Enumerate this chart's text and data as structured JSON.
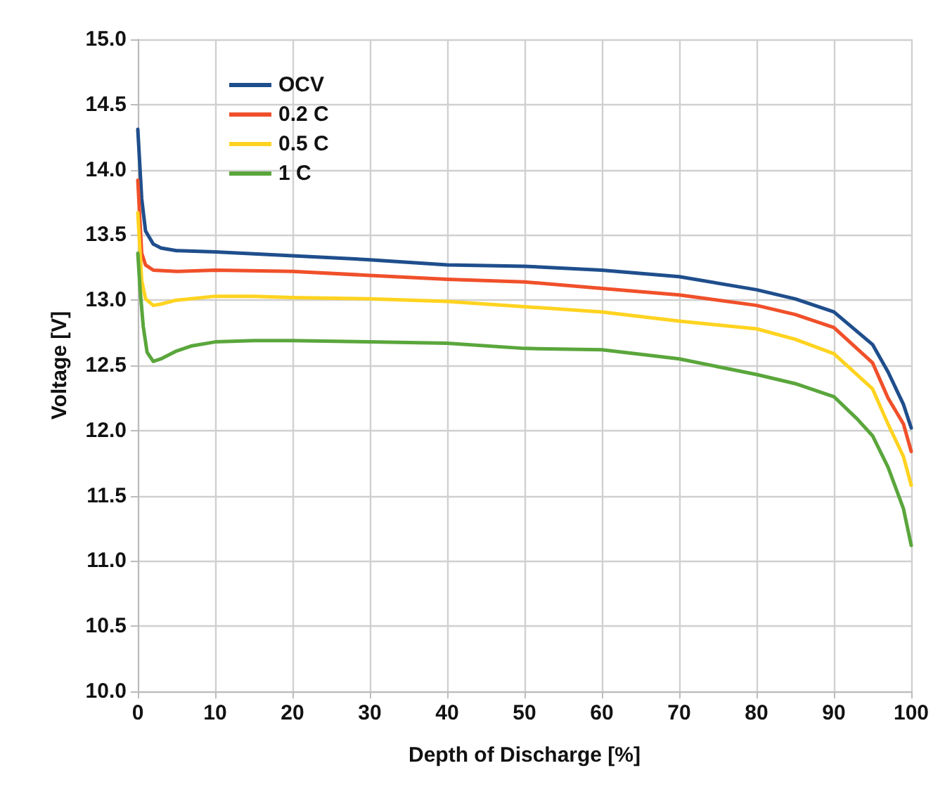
{
  "chart_data": {
    "type": "line",
    "xlabel": "Depth of Discharge [%]",
    "ylabel": "Voltage [V]",
    "xlim": [
      0,
      100
    ],
    "xticks": [
      0,
      10,
      20,
      30,
      40,
      50,
      60,
      70,
      80,
      90,
      100
    ],
    "ylim": [
      10,
      15
    ],
    "yticks": [
      {
        "value": 10,
        "label": "10.0"
      },
      10.5,
      {
        "value": 11,
        "label": "11.0"
      },
      11.5,
      {
        "value": 12,
        "label": "12.0"
      },
      12.5,
      {
        "value": 13,
        "label": "13.0"
      },
      13.5,
      {
        "value": 14,
        "label": "14.0"
      },
      14.5,
      {
        "value": 15,
        "label": "15.0"
      }
    ],
    "grid": true,
    "legend": "top left",
    "marker": "none",
    "line_style": "solid",
    "series": [
      {
        "name": "OCV",
        "color": "#1f4e8c",
        "x": [
          0,
          0.5,
          1,
          2,
          3,
          5,
          10,
          20,
          30,
          40,
          50,
          60,
          70,
          80,
          85,
          90,
          95,
          97,
          99,
          100
        ],
        "values": [
          14.31,
          13.78,
          13.53,
          13.43,
          13.4,
          13.38,
          13.37,
          13.34,
          13.31,
          13.27,
          13.26,
          13.23,
          13.18,
          13.08,
          13.01,
          12.91,
          12.66,
          12.45,
          12.2,
          12.02
        ]
      },
      {
        "name": "0.2 C",
        "color": "#f0502a",
        "x": [
          0,
          0.5,
          1,
          2,
          5,
          10,
          20,
          30,
          40,
          50,
          60,
          70,
          80,
          85,
          90,
          95,
          97,
          99,
          100
        ],
        "values": [
          13.92,
          13.36,
          13.27,
          13.23,
          13.22,
          13.23,
          13.22,
          13.19,
          13.16,
          13.14,
          13.09,
          13.04,
          12.96,
          12.89,
          12.79,
          12.52,
          12.25,
          12.05,
          11.84
        ]
      },
      {
        "name": "0.5 C",
        "color": "#ffd320",
        "x": [
          0,
          0.5,
          1,
          2,
          3,
          5,
          10,
          15,
          20,
          30,
          40,
          50,
          60,
          70,
          80,
          85,
          90,
          95,
          97,
          99,
          100
        ],
        "values": [
          13.67,
          13.15,
          13.01,
          12.96,
          12.97,
          13.0,
          13.03,
          13.03,
          13.02,
          13.01,
          12.99,
          12.95,
          12.91,
          12.84,
          12.78,
          12.7,
          12.59,
          12.32,
          12.05,
          11.8,
          11.58
        ]
      },
      {
        "name": "1 C",
        "color": "#5aa63c",
        "x": [
          0,
          0.3,
          0.7,
          1.2,
          2,
          3,
          5,
          7,
          10,
          15,
          20,
          30,
          40,
          50,
          60,
          70,
          80,
          85,
          90,
          93,
          95,
          97,
          99,
          100
        ],
        "values": [
          13.36,
          13.08,
          12.8,
          12.6,
          12.53,
          12.55,
          12.61,
          12.65,
          12.68,
          12.69,
          12.69,
          12.68,
          12.67,
          12.63,
          12.62,
          12.55,
          12.43,
          12.36,
          12.26,
          12.09,
          11.96,
          11.72,
          11.4,
          11.12
        ]
      }
    ]
  }
}
